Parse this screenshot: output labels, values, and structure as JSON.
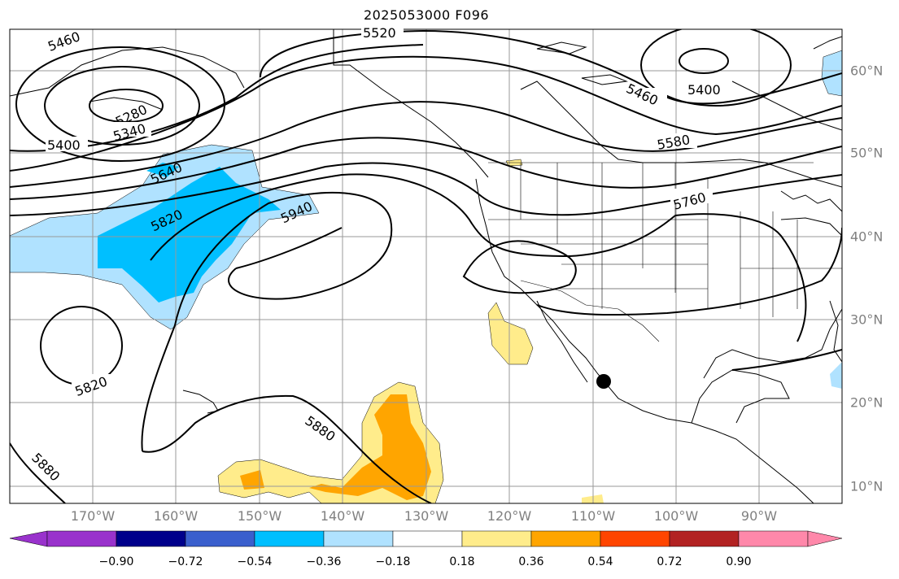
{
  "title": "2025053000 F096",
  "map": {
    "lon_labels": [
      "170°W",
      "160°W",
      "150°W",
      "140°W",
      "130°W",
      "120°W",
      "110°W",
      "100°W",
      "90°W"
    ],
    "lat_labels": [
      "60°N",
      "50°N",
      "40°N",
      "30°N",
      "20°N",
      "10°N"
    ],
    "contour_labels": [
      "5460",
      "5520",
      "5280",
      "5340",
      "5400",
      "5400",
      "5460",
      "5580",
      "5640",
      "5820",
      "5940",
      "5760",
      "5820",
      "5880",
      "5880"
    ],
    "marker": "storm-center-dot"
  },
  "colorbar": {
    "ticks": [
      "−0.90",
      "−0.72",
      "−0.54",
      "−0.36",
      "−0.18",
      "0.18",
      "0.36",
      "0.54",
      "0.72",
      "0.90"
    ],
    "colors": [
      "#9932cc",
      "#00008b",
      "#3a5fcd",
      "#00bfff",
      "#b0e2ff",
      "#ffffff",
      "#ffec8b",
      "#ffa500",
      "#ff4500",
      "#b22222",
      "#ff88aa"
    ]
  }
}
